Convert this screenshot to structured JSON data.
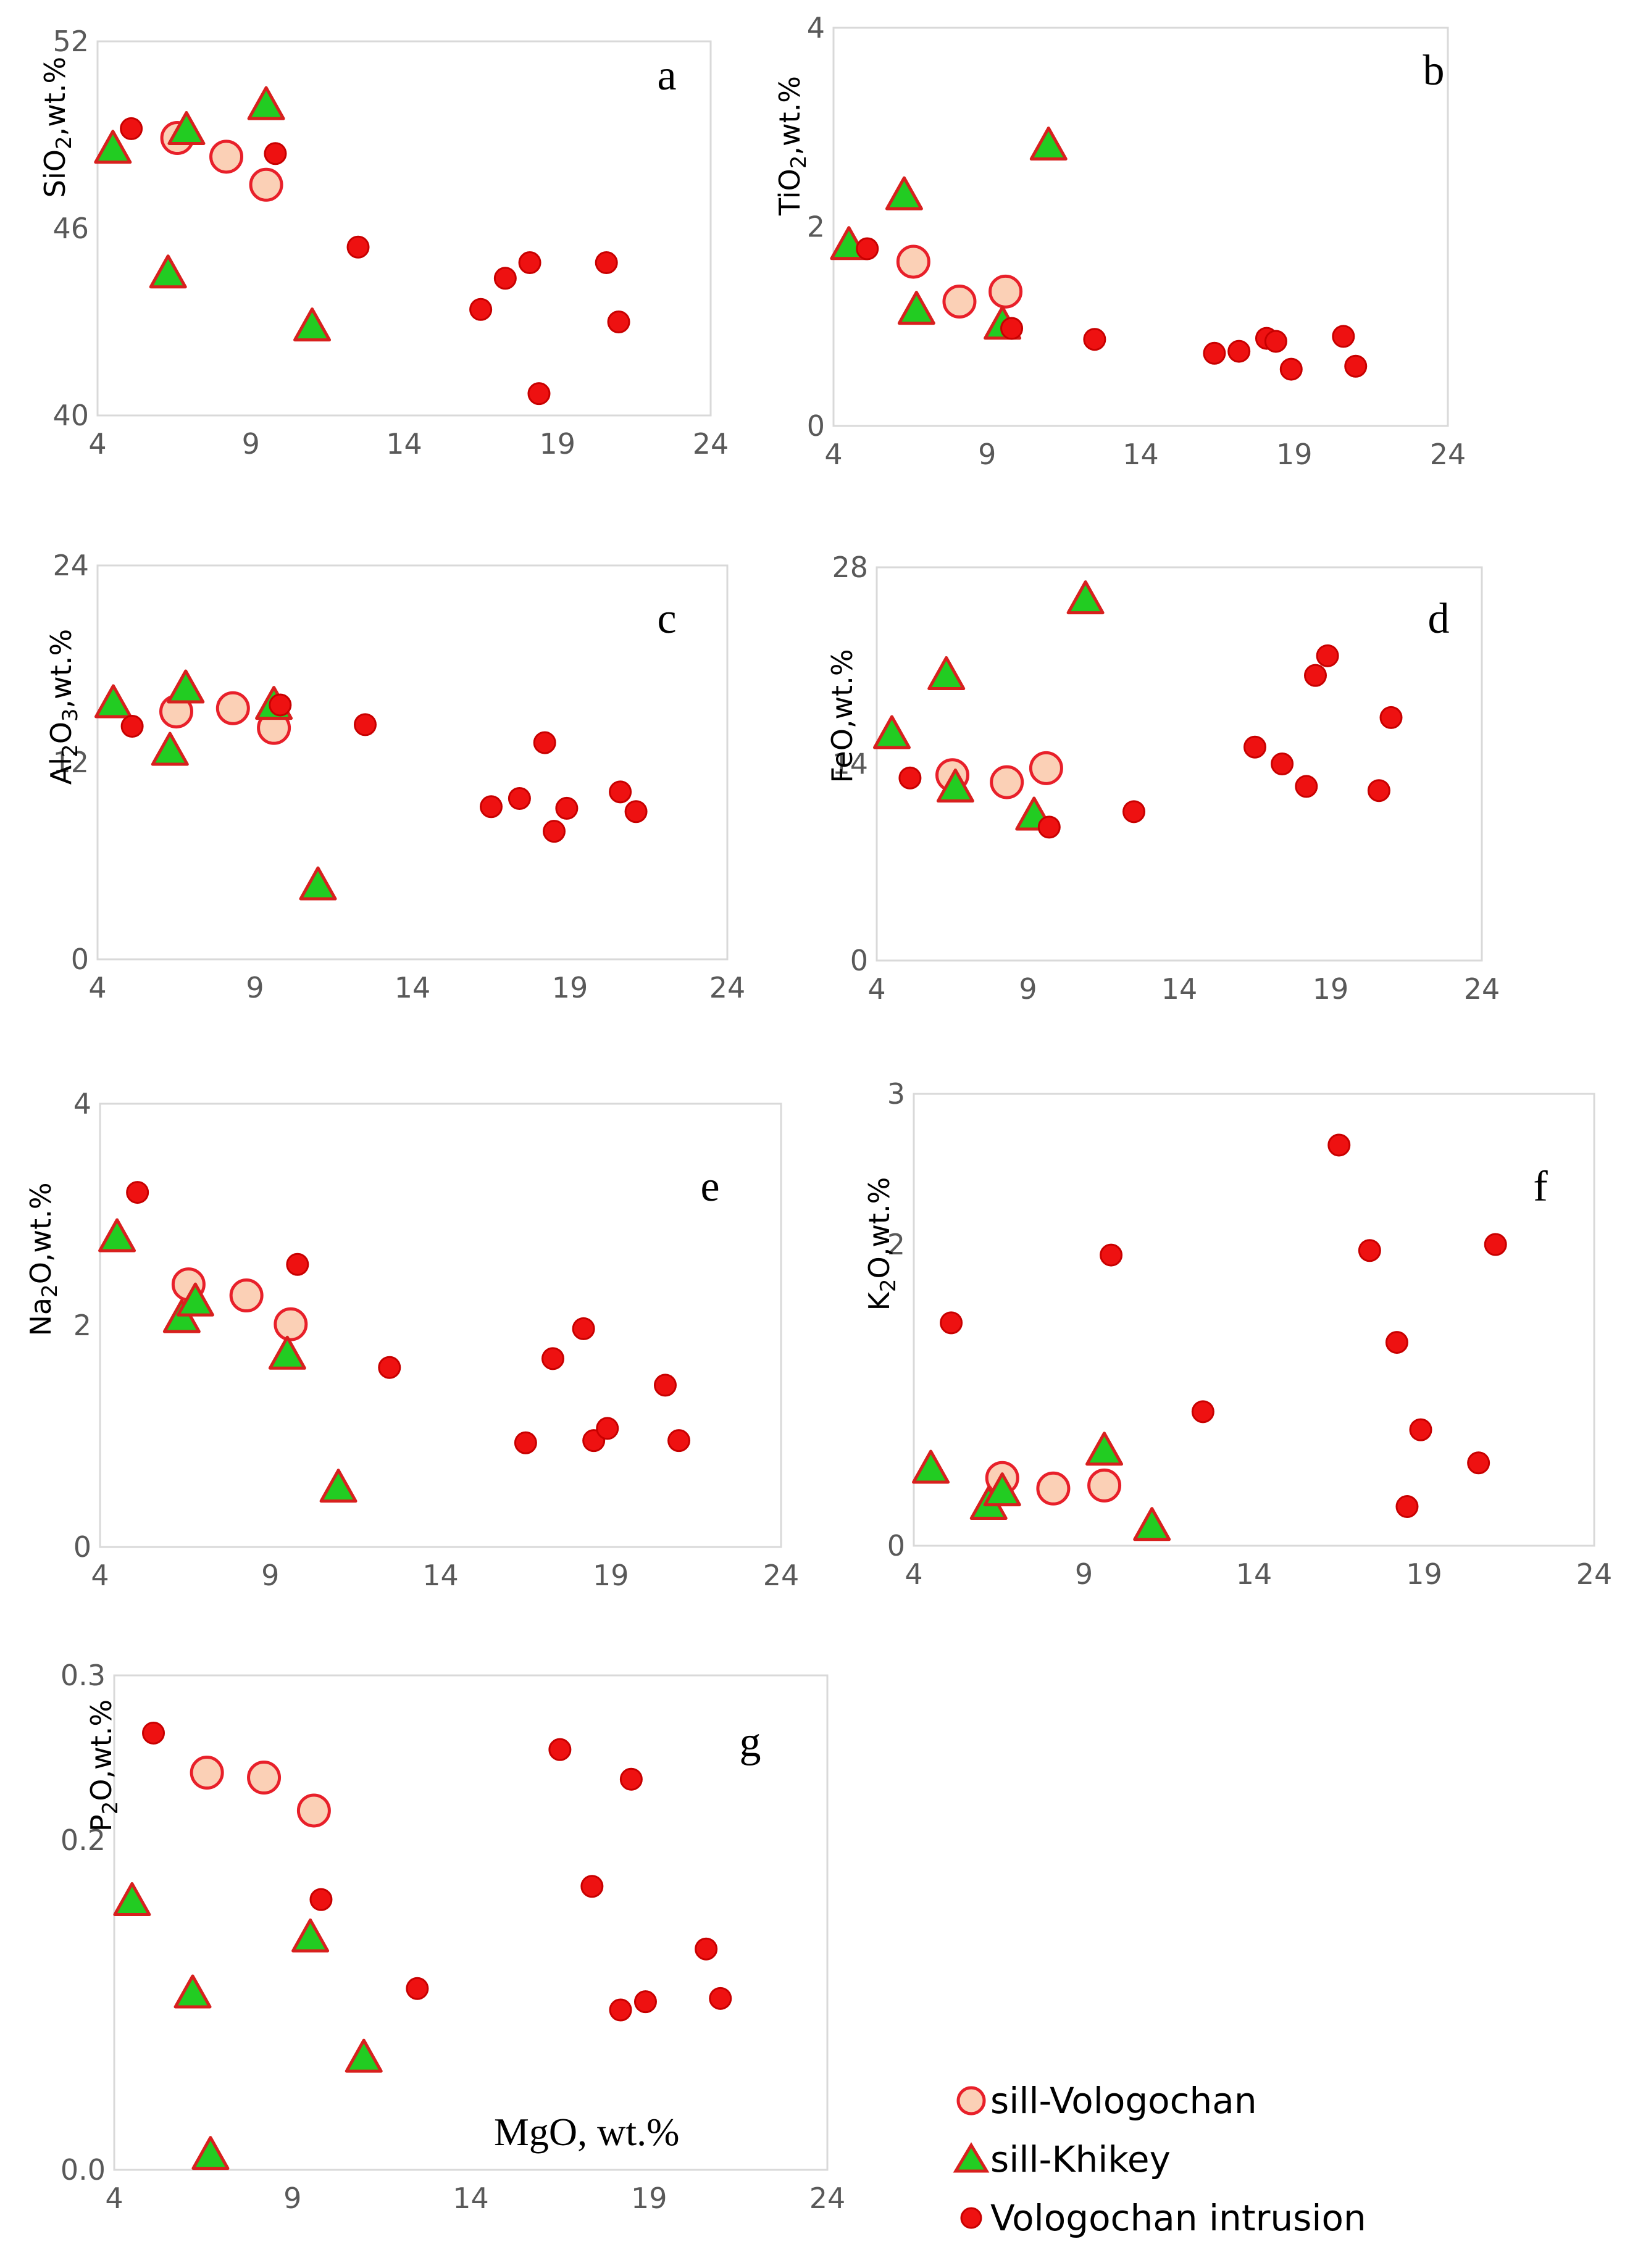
{
  "colors": {
    "vologochan_sill_fill": "#FBD0B6",
    "vologochan_sill_stroke": "#E8202A",
    "khikey_fill": "#22CC22",
    "khikey_stroke": "#D8201E",
    "intrusion_fill": "#EE1111",
    "intrusion_stroke": "#C80000",
    "axis": "#D9D9D9",
    "tick_text": "#595959"
  },
  "legend": [
    {
      "key": "vol",
      "label": "sill-Vologochan",
      "marker": "circle-open"
    },
    {
      "key": "khi",
      "label": "sill-Khikey",
      "marker": "triangle"
    },
    {
      "key": "intr",
      "label": "Vologochan intrusion",
      "marker": "dot"
    }
  ],
  "chart_data": [
    {
      "panel": "a",
      "type": "scatter",
      "ylabel_main": "SiO",
      "ylabel_sub": "2",
      "ylabel_rest": ",wt.%",
      "xlim": [
        4,
        24
      ],
      "xticks": [
        "4",
        "9",
        "14",
        "19",
        "24"
      ],
      "ylim": [
        40,
        52
      ],
      "yticks": [
        "40",
        "46",
        "52"
      ],
      "series": [
        {
          "key": "vol",
          "name": "sill-Vologochan",
          "x": [
            6.6,
            8.2,
            9.5
          ],
          "y": [
            48.9,
            48.3,
            47.4
          ]
        },
        {
          "key": "khi",
          "name": "sill-Khikey",
          "x": [
            4.5,
            6.3,
            6.9,
            9.5,
            11.0
          ],
          "y": [
            48.5,
            44.5,
            49.1,
            49.9,
            42.8
          ]
        },
        {
          "key": "intr",
          "name": "Vologochan intrusion",
          "x": [
            5.1,
            9.8,
            12.5,
            16.5,
            17.3,
            18.1,
            18.4,
            20.6,
            21.0
          ],
          "y": [
            49.2,
            48.4,
            45.4,
            43.4,
            44.4,
            44.9,
            40.7,
            44.9,
            43.0
          ]
        }
      ],
      "annotation": ""
    },
    {
      "panel": "b",
      "type": "scatter",
      "ylabel_main": "TiO",
      "ylabel_sub": "2",
      "ylabel_rest": ",wt.%",
      "xlim": [
        4,
        24
      ],
      "xticks": [
        "4",
        "9",
        "14",
        "19",
        "24"
      ],
      "ylim": [
        0,
        4
      ],
      "yticks": [
        "0",
        "2",
        "4"
      ],
      "series": [
        {
          "key": "vol",
          "name": "sill-Vologochan",
          "x": [
            6.6,
            8.1,
            9.6
          ],
          "y": [
            1.65,
            1.25,
            1.35
          ]
        },
        {
          "key": "khi",
          "name": "sill-Khikey",
          "x": [
            4.5,
            6.3,
            6.7,
            9.5,
            11.0
          ],
          "y": [
            1.8,
            2.3,
            1.15,
            1.0,
            2.8
          ]
        },
        {
          "key": "intr",
          "name": "Vologochan intrusion",
          "x": [
            5.1,
            9.8,
            12.5,
            16.4,
            17.2,
            18.1,
            18.4,
            18.9,
            20.6,
            21.0
          ],
          "y": [
            1.78,
            0.98,
            0.87,
            0.73,
            0.75,
            0.88,
            0.85,
            0.57,
            0.9,
            0.6
          ]
        }
      ],
      "annotation": ""
    },
    {
      "panel": "c",
      "type": "scatter",
      "ylabel_main": "Al",
      "ylabel_sub": "2",
      "ylabel_mid": "O",
      "ylabel_sub2": "3",
      "ylabel_rest": ",wt.%",
      "xlim": [
        4,
        24
      ],
      "xticks": [
        "4",
        "9",
        "14",
        "19",
        "24"
      ],
      "ylim": [
        0,
        24
      ],
      "yticks": [
        "0",
        "12",
        "24"
      ],
      "series": [
        {
          "key": "vol",
          "name": "sill-Vologochan",
          "x": [
            6.5,
            8.3,
            9.6
          ],
          "y": [
            15.1,
            15.3,
            14.1
          ]
        },
        {
          "key": "khi",
          "name": "sill-Khikey",
          "x": [
            4.5,
            6.3,
            6.8,
            9.6,
            11.0
          ],
          "y": [
            15.5,
            12.6,
            16.4,
            15.4,
            4.4
          ]
        },
        {
          "key": "intr",
          "name": "Vologochan intrusion",
          "x": [
            5.1,
            9.8,
            12.5,
            16.5,
            17.4,
            18.2,
            18.5,
            18.9,
            20.6,
            21.1
          ],
          "y": [
            14.2,
            15.5,
            14.3,
            9.3,
            9.8,
            13.2,
            7.8,
            9.2,
            10.2,
            9.0
          ]
        }
      ],
      "annotation": ""
    },
    {
      "panel": "d",
      "type": "scatter",
      "ylabel_main": "FeO,wt.%",
      "xlim": [
        4,
        24
      ],
      "xticks": [
        "4",
        "9",
        "14",
        "19",
        "24"
      ],
      "ylim": [
        0,
        28
      ],
      "yticks": [
        "0",
        "14",
        "28"
      ],
      "series": [
        {
          "key": "vol",
          "name": "sill-Vologochan",
          "x": [
            6.5,
            8.3,
            9.6
          ],
          "y": [
            13.2,
            12.7,
            13.7
          ]
        },
        {
          "key": "khi",
          "name": "sill-Khikey",
          "x": [
            4.5,
            6.3,
            6.6,
            9.2,
            10.9
          ],
          "y": [
            16.0,
            20.2,
            12.2,
            10.2,
            25.6
          ]
        },
        {
          "key": "intr",
          "name": "Vologochan intrusion",
          "x": [
            5.1,
            9.7,
            12.5,
            16.5,
            17.4,
            18.2,
            18.5,
            18.9,
            20.6,
            21.0
          ],
          "y": [
            13.0,
            9.5,
            10.6,
            15.2,
            14.0,
            12.4,
            20.3,
            21.7,
            12.1,
            17.3
          ]
        }
      ],
      "annotation": ""
    },
    {
      "panel": "e",
      "type": "scatter",
      "ylabel_main": "Na",
      "ylabel_sub": "2",
      "ylabel_mid": "O,wt.%",
      "xlim": [
        4,
        24
      ],
      "xticks": [
        "4",
        "9",
        "14",
        "19",
        "24"
      ],
      "ylim": [
        0,
        4
      ],
      "yticks": [
        "0",
        "2",
        "4"
      ],
      "series": [
        {
          "key": "vol",
          "name": "sill-Vologochan",
          "x": [
            6.6,
            8.3,
            9.6
          ],
          "y": [
            2.37,
            2.27,
            2.01
          ]
        },
        {
          "key": "khi",
          "name": "sill-Khikey",
          "x": [
            4.5,
            6.4,
            6.8,
            9.5,
            11.0
          ],
          "y": [
            2.78,
            2.05,
            2.2,
            1.72,
            0.52
          ]
        },
        {
          "key": "intr",
          "name": "Vologochan intrusion",
          "x": [
            5.1,
            9.8,
            12.5,
            16.5,
            17.3,
            18.2,
            18.5,
            18.9,
            20.6,
            21.0
          ],
          "y": [
            3.2,
            2.55,
            1.62,
            0.94,
            1.7,
            1.97,
            0.96,
            1.07,
            1.46,
            0.96
          ]
        }
      ],
      "annotation": ""
    },
    {
      "panel": "f",
      "type": "scatter",
      "ylabel_main": "K",
      "ylabel_sub": "2",
      "ylabel_mid": "O,wt.%",
      "xlim": [
        4,
        24
      ],
      "xticks": [
        "4",
        "9",
        "14",
        "19",
        "24"
      ],
      "ylim": [
        0,
        3
      ],
      "yticks": [
        "0",
        "2",
        "3"
      ],
      "series": [
        {
          "key": "vol",
          "name": "sill-Vologochan",
          "x": [
            6.6,
            8.1,
            9.6
          ],
          "y": [
            0.45,
            0.38,
            0.4
          ]
        },
        {
          "key": "khi",
          "name": "sill-Khikey",
          "x": [
            4.5,
            6.2,
            6.6,
            9.6,
            11.0
          ],
          "y": [
            0.5,
            0.26,
            0.35,
            0.62,
            0.12
          ]
        },
        {
          "key": "intr",
          "name": "Vologochan intrusion",
          "x": [
            5.1,
            9.8,
            12.5,
            16.5,
            17.4,
            18.2,
            18.5,
            18.9,
            20.6,
            21.1
          ],
          "y": [
            1.48,
            1.93,
            0.89,
            2.66,
            1.96,
            1.35,
            0.26,
            0.77,
            0.55,
            2.0
          ]
        }
      ],
      "annotation": ""
    },
    {
      "panel": "g",
      "type": "scatter",
      "ylabel_main": "P",
      "ylabel_sub": "2",
      "ylabel_mid": "O,wt.%",
      "xlim": [
        4,
        24
      ],
      "xticks": [
        "4",
        "9",
        "14",
        "19",
        "24"
      ],
      "ylim": [
        0,
        0.3
      ],
      "yticks": [
        "0.0",
        "0.2",
        "0.3"
      ],
      "series": [
        {
          "key": "vol",
          "name": "sill-Vologochan",
          "x": [
            6.6,
            8.2,
            9.6
          ],
          "y": [
            0.241,
            0.238,
            0.218
          ]
        },
        {
          "key": "khi",
          "name": "sill-Khikey",
          "x": [
            4.5,
            6.2,
            6.7,
            9.5,
            11.0
          ],
          "y": [
            0.162,
            0.106,
            0.008,
            0.14,
            0.067
          ]
        },
        {
          "key": "intr",
          "name": "Vologochan intrusion",
          "x": [
            5.1,
            9.8,
            12.5,
            16.5,
            17.4,
            18.2,
            18.5,
            18.9,
            20.6,
            21.0
          ],
          "y": [
            0.265,
            0.164,
            0.11,
            0.255,
            0.172,
            0.097,
            0.237,
            0.102,
            0.134,
            0.104
          ]
        }
      ],
      "annotation": "MgO, wt.%"
    }
  ]
}
